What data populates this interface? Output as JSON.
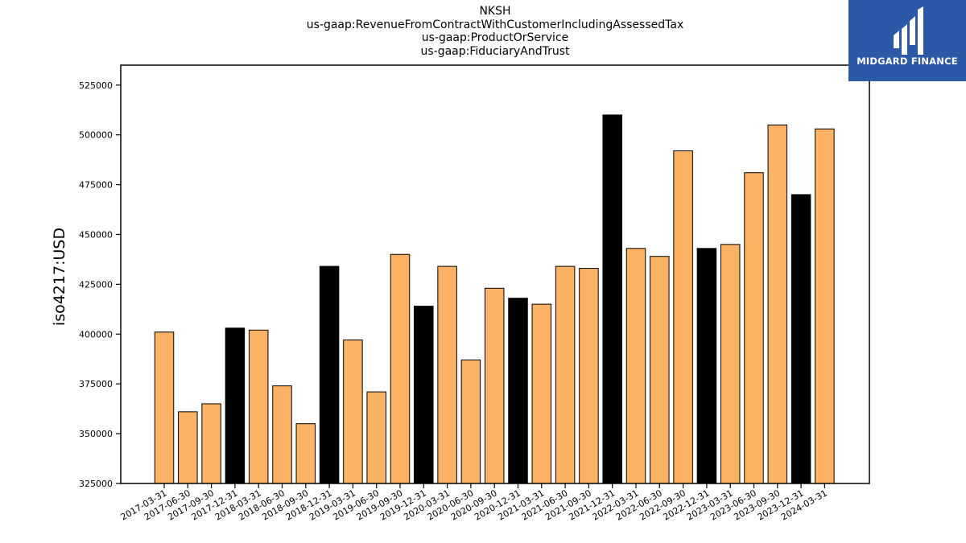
{
  "chart_data": {
    "type": "bar",
    "title_lines": [
      "NKSH",
      "us-gaap:RevenueFromContractWithCustomerIncludingAssessedTax",
      "us-gaap:ProductOrService",
      "us-gaap:FiduciaryAndTrust"
    ],
    "ylabel": "iso4217:USD",
    "xlabel": "",
    "ylim": [
      325000,
      535000
    ],
    "yticks": [
      325000,
      350000,
      375000,
      400000,
      425000,
      450000,
      475000,
      500000,
      525000
    ],
    "grid": false,
    "categories": [
      "2017-03-31",
      "2017-06-30",
      "2017-09-30",
      "2017-12-31",
      "2018-03-31",
      "2018-06-30",
      "2018-09-30",
      "2018-12-31",
      "2019-03-31",
      "2019-06-30",
      "2019-09-30",
      "2019-12-31",
      "2020-03-31",
      "2020-06-30",
      "2020-09-30",
      "2020-12-31",
      "2021-03-31",
      "2021-06-30",
      "2021-09-30",
      "2021-12-31",
      "2022-03-31",
      "2022-06-30",
      "2022-09-30",
      "2022-12-31",
      "2023-03-31",
      "2023-06-30",
      "2023-09-30",
      "2023-12-31",
      "2024-03-31"
    ],
    "values": [
      401000,
      361000,
      365000,
      403000,
      402000,
      374000,
      355000,
      434000,
      397000,
      371000,
      440000,
      414000,
      434000,
      387000,
      423000,
      418000,
      415000,
      434000,
      433000,
      510000,
      443000,
      439000,
      492000,
      443000,
      445000,
      481000,
      505000,
      470000,
      503000
    ],
    "highlight_color": "#000000",
    "base_color": "#fbb264",
    "highlighted_categories": [
      "2017-12-31",
      "2018-12-31",
      "2019-12-31",
      "2020-12-31",
      "2021-12-31",
      "2022-12-31",
      "2023-12-31"
    ]
  },
  "logo": {
    "text": "MIDGARD FINANCE",
    "background": "#2c58a8"
  }
}
